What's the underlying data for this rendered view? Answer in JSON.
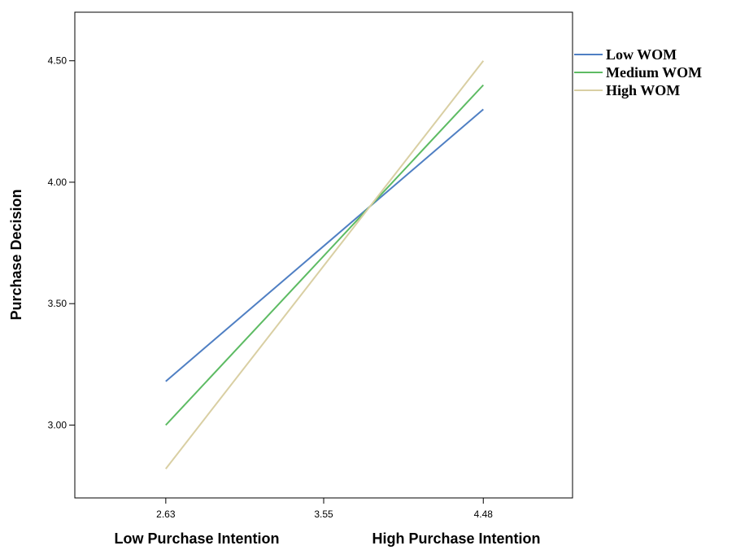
{
  "chart_data": {
    "type": "line",
    "title": "",
    "xlabel": "",
    "ylabel": "Purchase Decision",
    "x_ticks": [
      "2.63",
      "3.55",
      "4.48"
    ],
    "x_tick_values": [
      2.63,
      3.55,
      4.48
    ],
    "x_category_labels": [
      "Low Purchase Intention",
      "High Purchase Intention"
    ],
    "y_ticks": [
      "3.00",
      "3.50",
      "4.00",
      "4.50"
    ],
    "y_tick_values": [
      3.0,
      3.5,
      4.0,
      4.5
    ],
    "xlim": [
      2.1,
      5.0
    ],
    "ylim": [
      2.7,
      4.7
    ],
    "grid": false,
    "legend_position": "right",
    "x": [
      2.63,
      4.48
    ],
    "series": [
      {
        "name": "Low WOM",
        "values": [
          3.18,
          4.3
        ],
        "color": "#4f7fc3"
      },
      {
        "name": "Medium WOM",
        "values": [
          3.0,
          4.4
        ],
        "color": "#5dbb63"
      },
      {
        "name": "High WOM",
        "values": [
          2.82,
          4.5
        ],
        "color": "#d9cfa3"
      }
    ]
  }
}
